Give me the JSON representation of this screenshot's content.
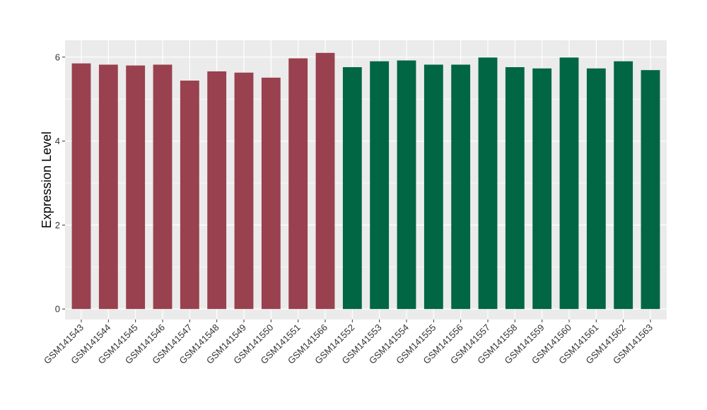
{
  "chart_data": {
    "type": "bar",
    "title": "",
    "xlabel": "",
    "ylabel": "Expression Level",
    "ylim": [
      -0.25,
      6.4
    ],
    "yticks": [
      0,
      2,
      4,
      6
    ],
    "grid": true,
    "legend": "none",
    "categories": [
      "GSM141543",
      "GSM141544",
      "GSM141545",
      "GSM141546",
      "GSM141547",
      "GSM141548",
      "GSM141549",
      "GSM141550",
      "GSM141551",
      "GSM141566",
      "GSM141552",
      "GSM141553",
      "GSM141554",
      "GSM141555",
      "GSM141556",
      "GSM141557",
      "GSM141558",
      "GSM141559",
      "GSM141560",
      "GSM141561",
      "GSM141562",
      "GSM141563"
    ],
    "values": [
      5.85,
      5.82,
      5.8,
      5.82,
      5.44,
      5.66,
      5.63,
      5.51,
      5.97,
      6.1,
      5.76,
      5.9,
      5.92,
      5.82,
      5.82,
      5.99,
      5.76,
      5.73,
      5.99,
      5.73,
      5.9,
      5.69
    ],
    "groups": [
      "A",
      "A",
      "A",
      "A",
      "A",
      "A",
      "A",
      "A",
      "A",
      "A",
      "B",
      "B",
      "B",
      "B",
      "B",
      "B",
      "B",
      "B",
      "B",
      "B",
      "B",
      "B"
    ],
    "group_colors": {
      "A": "#99414f",
      "B": "#006644"
    },
    "panel_background": "#ebebeb",
    "grid_color": "#ffffff"
  }
}
